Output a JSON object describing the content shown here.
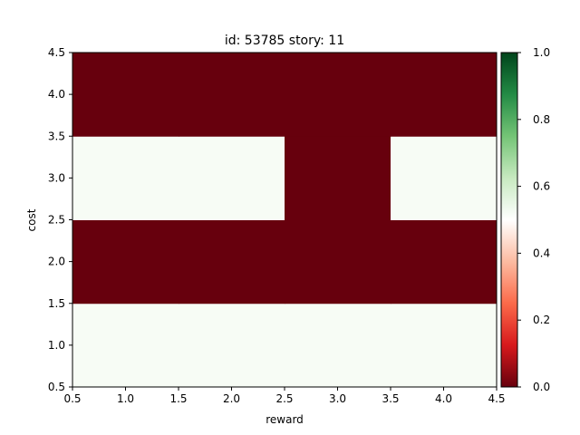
{
  "chart_data": {
    "type": "heatmap",
    "title": "id: 53785 story: 11",
    "xlabel": "reward",
    "ylabel": "cost",
    "x_categories": [
      1,
      2,
      3,
      4
    ],
    "y_categories": [
      1,
      2,
      3,
      4
    ],
    "xlim": [
      0.5,
      4.5
    ],
    "ylim": [
      0.5,
      4.5
    ],
    "x_ticks": [
      "0.5",
      "1.0",
      "1.5",
      "2.0",
      "2.5",
      "3.0",
      "3.5",
      "4.0",
      "4.5"
    ],
    "y_ticks": [
      "0.5",
      "1.0",
      "1.5",
      "2.0",
      "2.5",
      "3.0",
      "3.5",
      "4.0",
      "4.5"
    ],
    "values": [
      [
        0.5,
        0.5,
        0.5,
        0.5
      ],
      [
        0.0,
        0.0,
        0.0,
        0.0
      ],
      [
        0.5,
        0.5,
        0.0,
        0.5
      ],
      [
        0.0,
        0.0,
        0.0,
        0.0
      ]
    ],
    "colormap": "RdYlGn-like (red-white-green)",
    "colorbar": {
      "min": 0.0,
      "max": 1.0,
      "ticks": [
        "0.0",
        "0.2",
        "0.4",
        "0.6",
        "0.8",
        "1.0"
      ],
      "stops": [
        "#67000d",
        "#d7191c",
        "#fb6a4a",
        "#fcbba1",
        "#ffffff",
        "#c7e9c0",
        "#74c476",
        "#238b45",
        "#00441b"
      ]
    },
    "cell_colors": {
      "low": "#67000d",
      "mid": "#f7fcf5"
    },
    "grid": false
  }
}
